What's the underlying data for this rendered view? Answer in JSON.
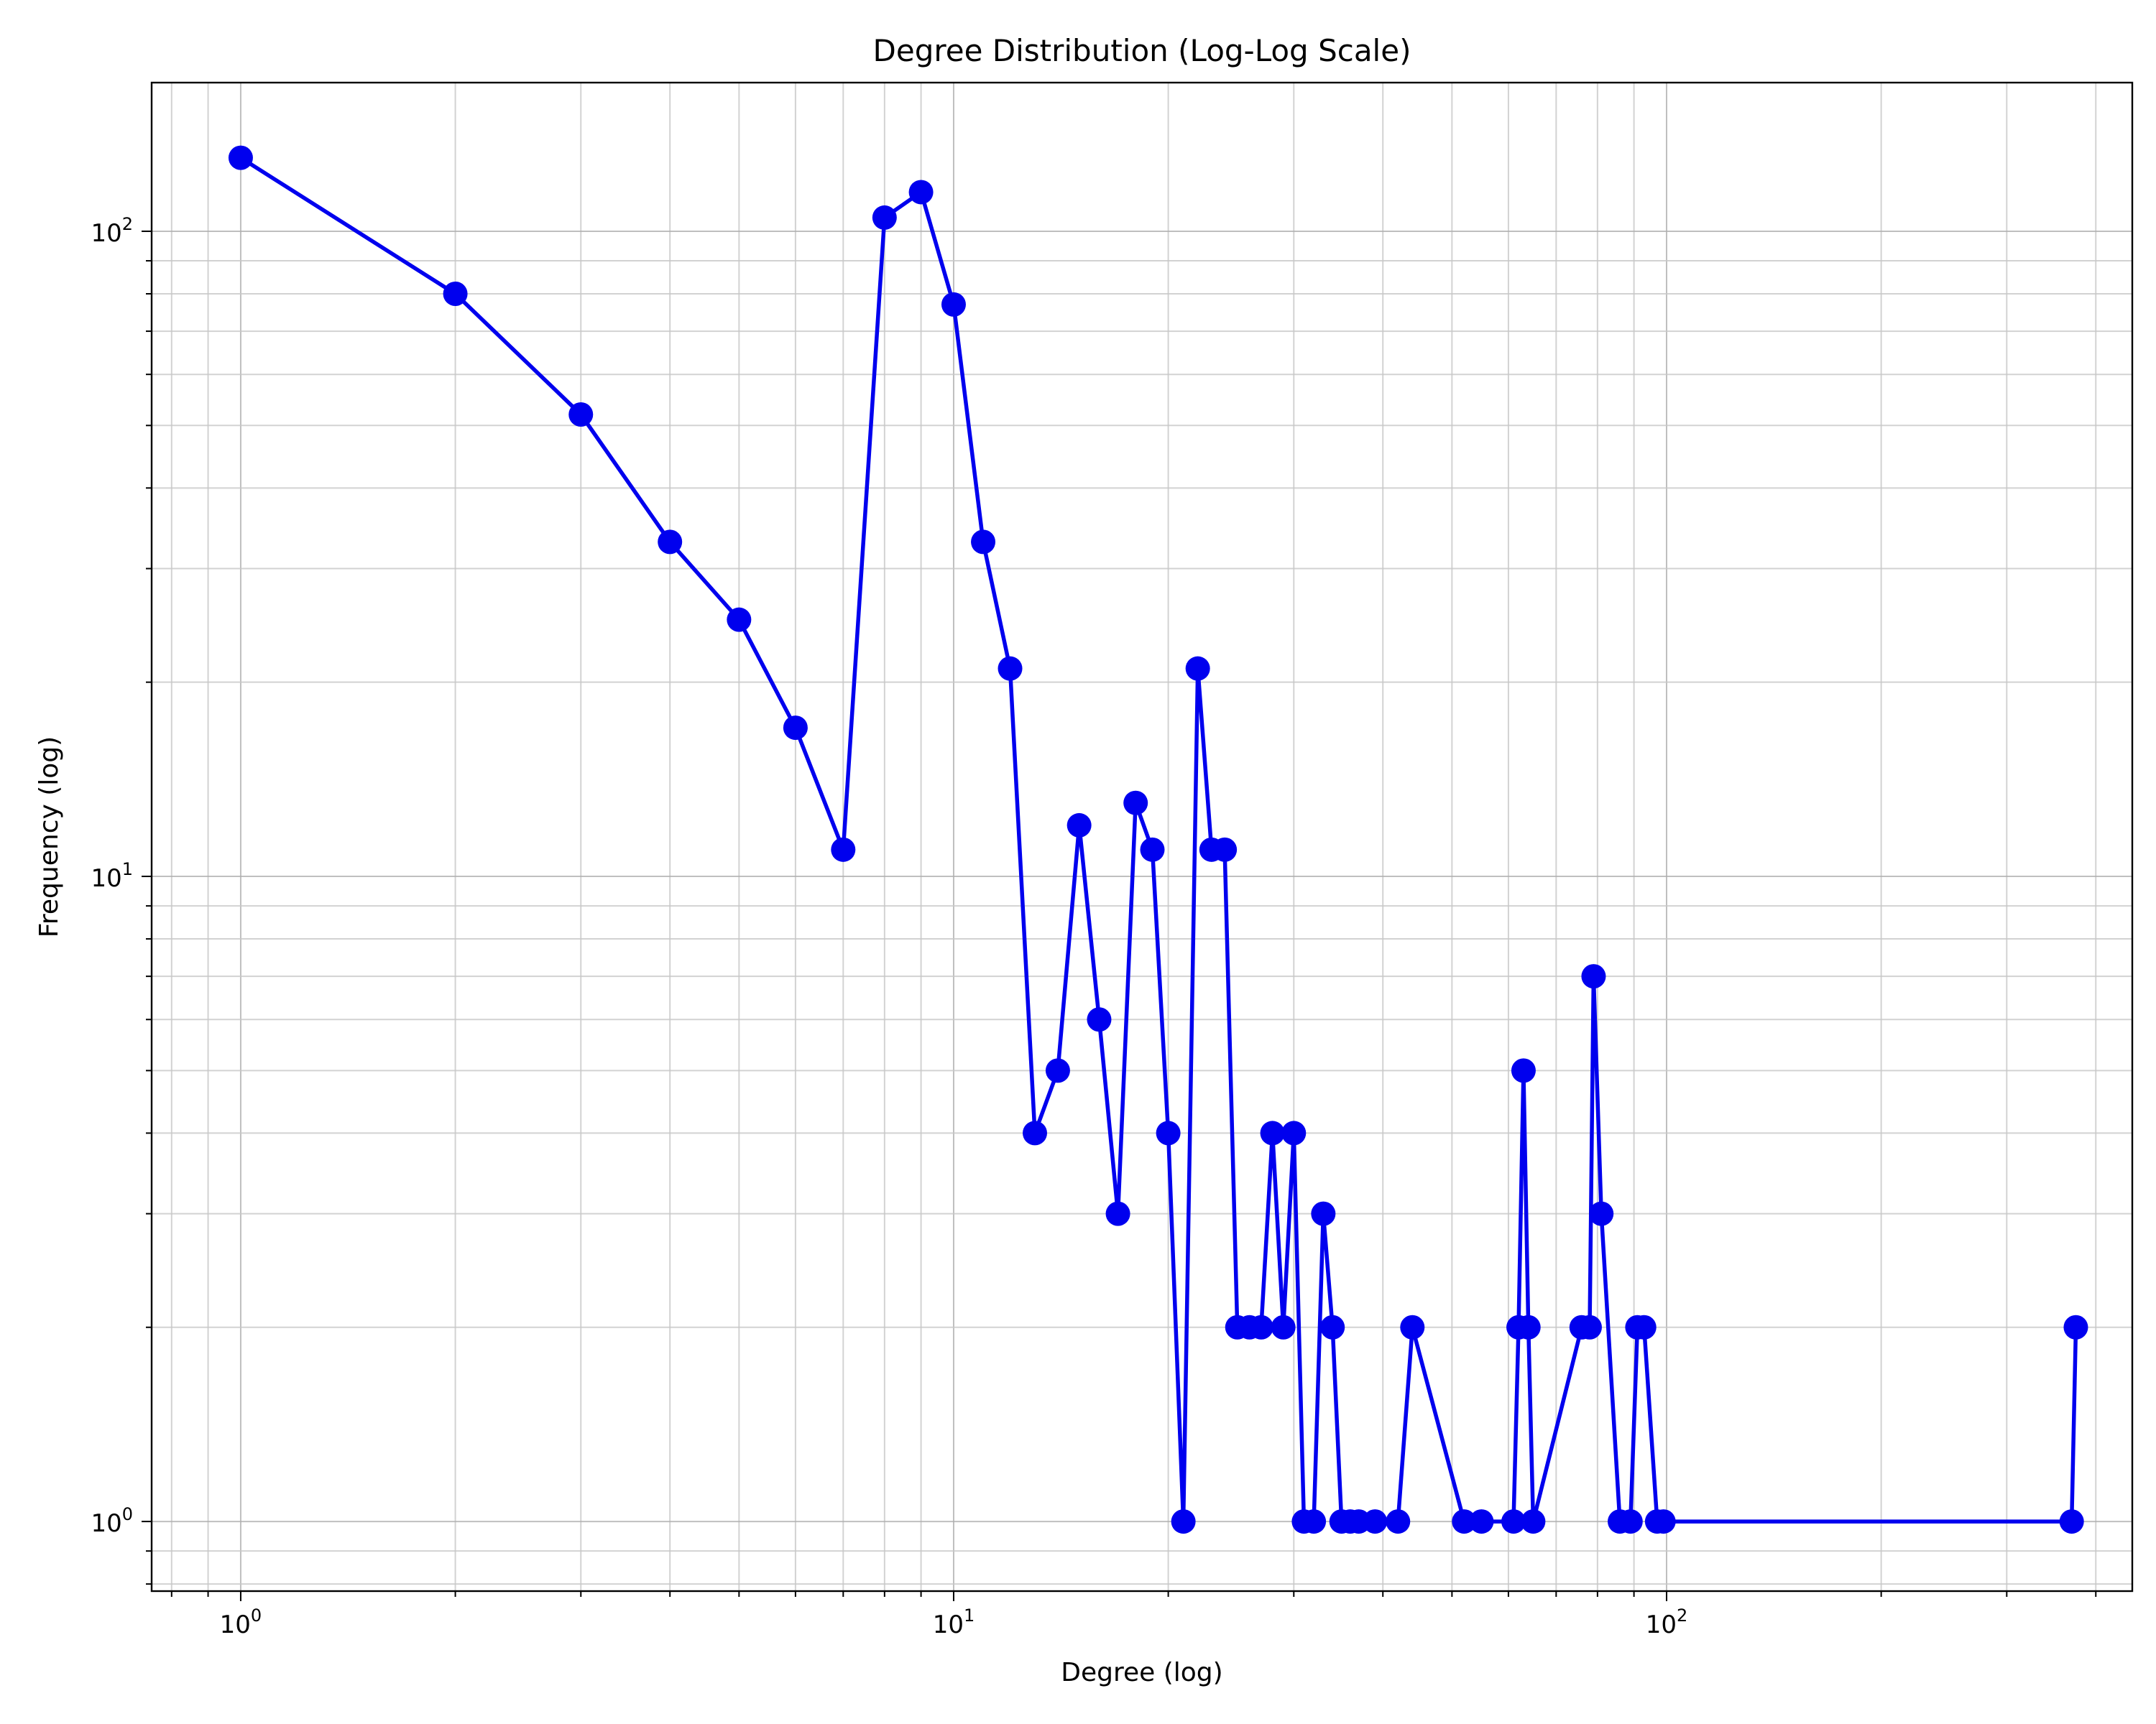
{
  "chart_data": {
    "type": "line",
    "title": "Degree Distribution (Log-Log Scale)",
    "xlabel": "Degree (log)",
    "ylabel": "Frequency (log)",
    "xscale": "log",
    "yscale": "log",
    "xlim": [
      0.75,
      450
    ],
    "ylim": [
      0.78,
      170
    ],
    "grid": true,
    "color": "#0000ee",
    "x_ticks": [
      {
        "value": 1,
        "base": "10",
        "exp": "0"
      },
      {
        "value": 10,
        "base": "10",
        "exp": "1"
      },
      {
        "value": 100,
        "base": "10",
        "exp": "2"
      }
    ],
    "y_ticks": [
      {
        "value": 1,
        "base": "10",
        "exp": "0"
      },
      {
        "value": 10,
        "base": "10",
        "exp": "1"
      },
      {
        "value": 100,
        "base": "10",
        "exp": "2"
      }
    ],
    "series": [
      {
        "x": [
          1,
          2,
          3,
          4,
          5,
          6,
          7,
          8,
          9,
          10,
          11,
          12,
          13,
          14,
          15,
          16,
          17,
          18,
          19,
          20,
          21,
          22,
          23,
          24,
          25,
          26,
          27,
          28,
          29,
          30,
          31,
          32,
          33,
          34,
          35,
          36,
          37,
          39,
          42,
          44,
          52,
          55,
          61,
          62,
          63,
          64,
          65,
          76,
          78,
          79,
          81,
          86,
          89,
          91,
          93,
          97,
          99,
          370,
          375
        ],
        "y": [
          130,
          80,
          52,
          33,
          25,
          17,
          11,
          105,
          115,
          77,
          33,
          21,
          4,
          5,
          12,
          6,
          3,
          13,
          11,
          4,
          1,
          21,
          11,
          11,
          2,
          2,
          2,
          4,
          2,
          4,
          1,
          1,
          3,
          2,
          1,
          1,
          1,
          1,
          1,
          2,
          1,
          1,
          1,
          2,
          5,
          2,
          1,
          2,
          2,
          7,
          3,
          1,
          1,
          2,
          2,
          1,
          1,
          1,
          2
        ]
      }
    ]
  }
}
